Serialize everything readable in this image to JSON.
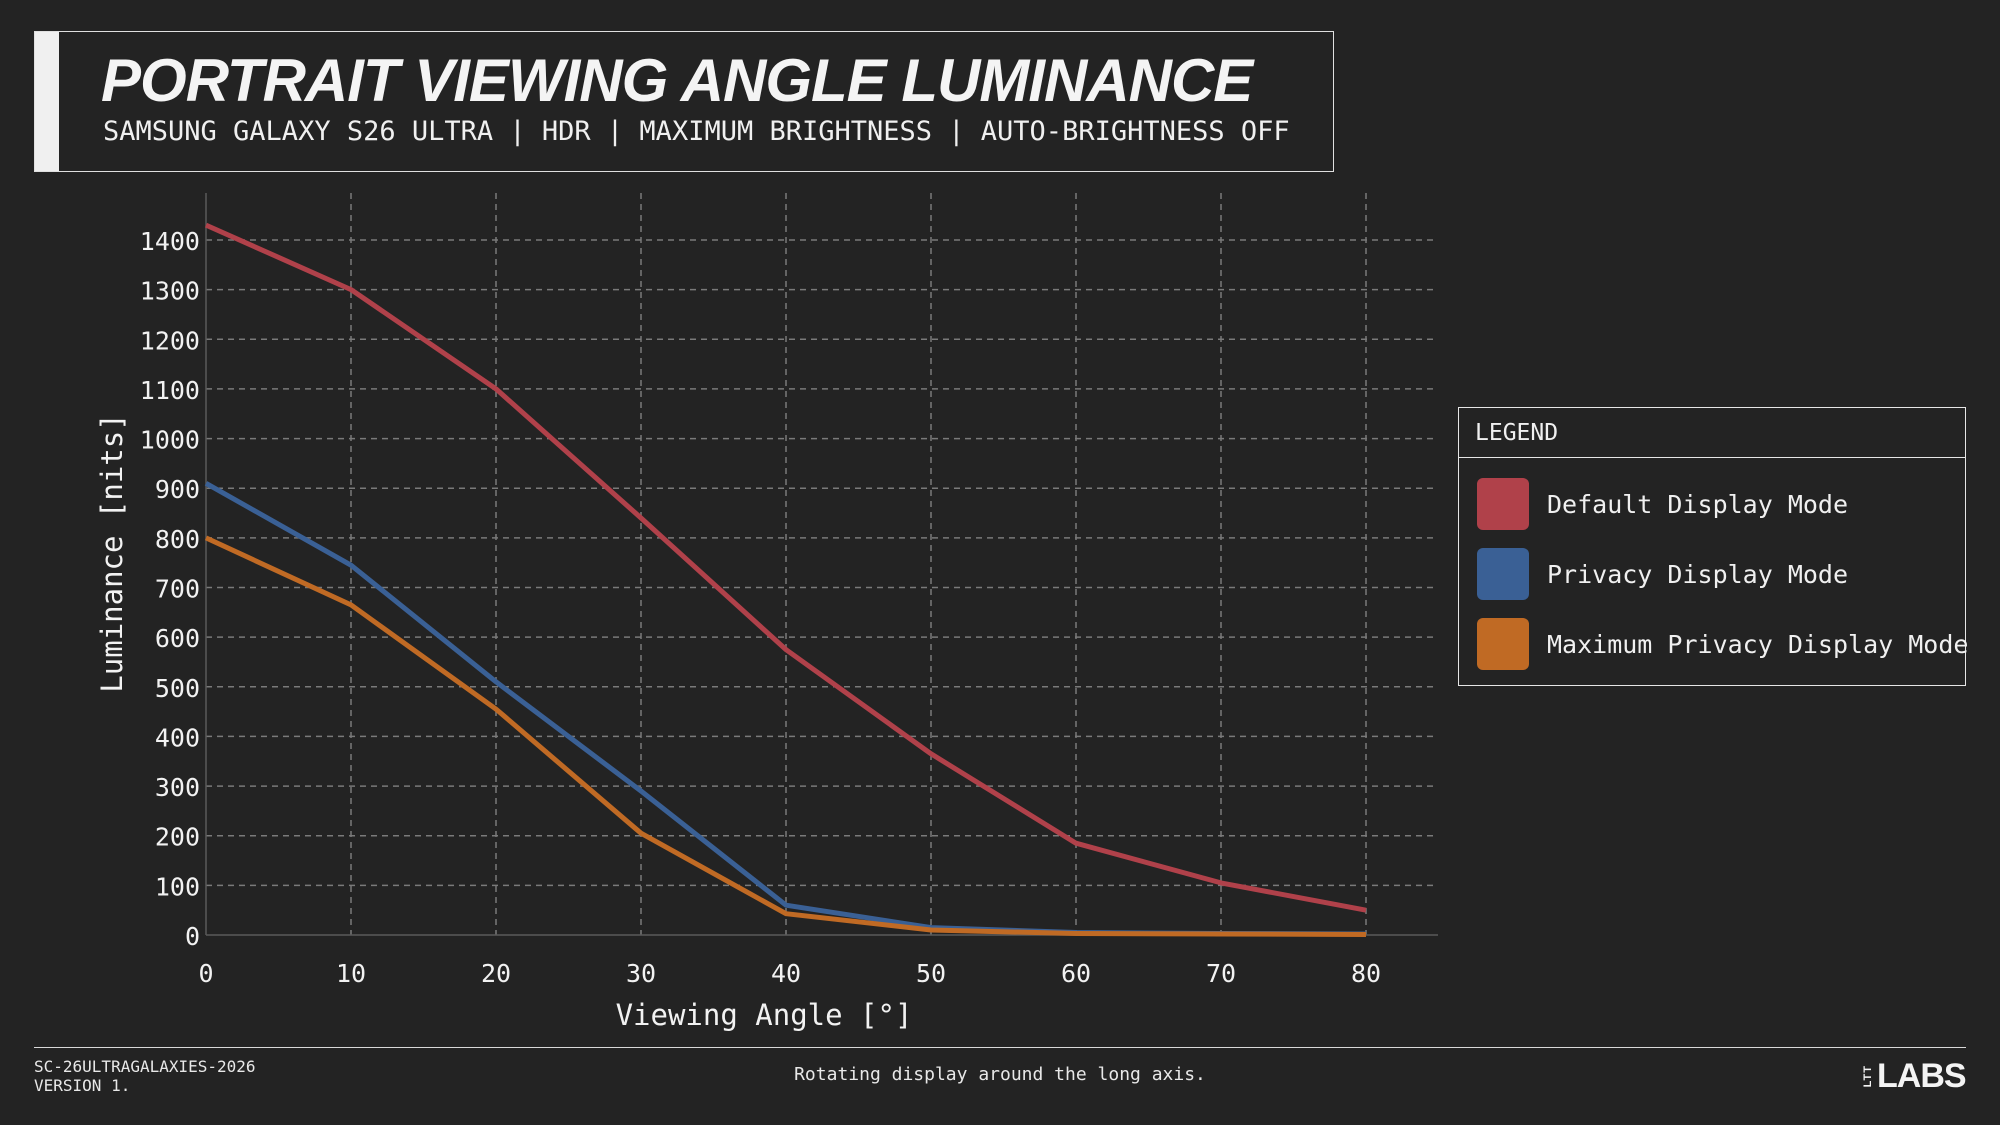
{
  "header": {
    "title": "PORTRAIT VIEWING ANGLE LUMINANCE",
    "subtitle": "SAMSUNG GALAXY S26 ULTRA | HDR | MAXIMUM BRIGHTNESS | AUTO-BRIGHTNESS OFF"
  },
  "chart_data": {
    "type": "line",
    "title": "PORTRAIT VIEWING ANGLE LUMINANCE",
    "xlabel": "Viewing Angle [°]",
    "ylabel": "Luminance [nits]",
    "x": [
      0,
      10,
      20,
      30,
      40,
      50,
      60,
      70,
      80
    ],
    "xticks": [
      "0",
      "10",
      "20",
      "30",
      "40",
      "50",
      "60",
      "70",
      "80"
    ],
    "yticks": [
      "0",
      "100",
      "200",
      "300",
      "400",
      "500",
      "600",
      "700",
      "800",
      "900",
      "1000",
      "1100",
      "1200",
      "1300",
      "1400"
    ],
    "xlim": [
      0,
      85
    ],
    "ylim": [
      0,
      1500
    ],
    "grid": true,
    "legend_position": "right",
    "series": [
      {
        "name": "Default Display Mode",
        "color": "#b0414a",
        "values": [
          1430,
          1300,
          1100,
          840,
          575,
          365,
          185,
          105,
          50
        ]
      },
      {
        "name": "Privacy Display Mode",
        "color": "#3a6095",
        "values": [
          910,
          745,
          510,
          290,
          60,
          15,
          5,
          3,
          2
        ]
      },
      {
        "name": "Maximum Privacy Display Mode",
        "color": "#c06a24",
        "values": [
          800,
          665,
          455,
          205,
          43,
          10,
          3,
          2,
          1
        ]
      }
    ]
  },
  "legend": {
    "header": "LEGEND"
  },
  "footer": {
    "code": "SC-26ULTRAGALAXIES-2026",
    "version": "VERSION 1.",
    "note": "Rotating display around the long axis.",
    "logo_small": "LTT",
    "logo_main": "LABS"
  },
  "colors": {
    "background": "#232323",
    "grid": "#7a7a7a",
    "text": "#f2f2f2"
  }
}
